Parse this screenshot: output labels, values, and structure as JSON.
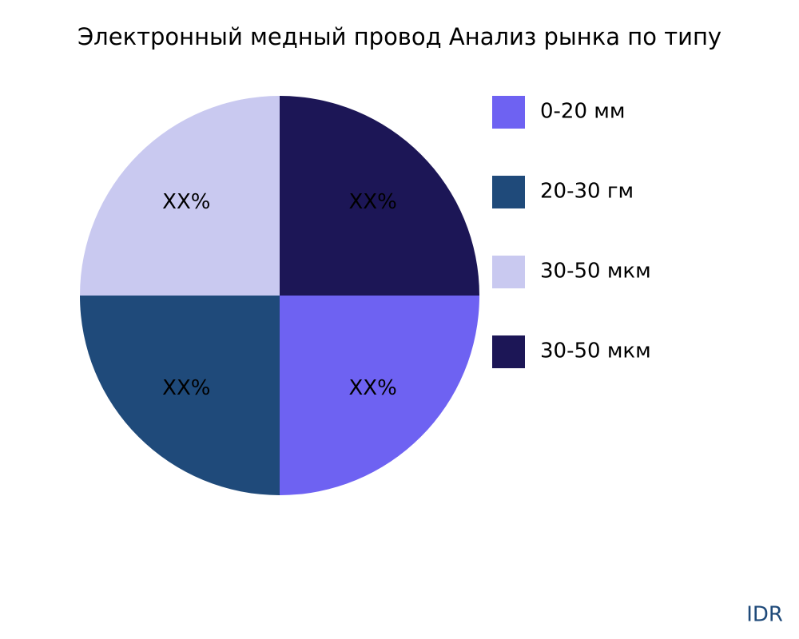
{
  "chart_data": {
    "type": "pie",
    "title": "Электронный медный провод Анализ рынка по типу",
    "categories": [
      "0-20 мм",
      "20-30 гм",
      "30-50 мкм",
      "30-50 мкм"
    ],
    "values": [
      25,
      25,
      25,
      25
    ],
    "value_labels": [
      "XX%",
      "XX%",
      "XX%",
      "XX%"
    ],
    "colors": [
      "#6e62f2",
      "#1f4a7a",
      "#c9c9f0",
      "#1c1656"
    ],
    "legend": "right",
    "annotations": [
      "IDR"
    ]
  }
}
